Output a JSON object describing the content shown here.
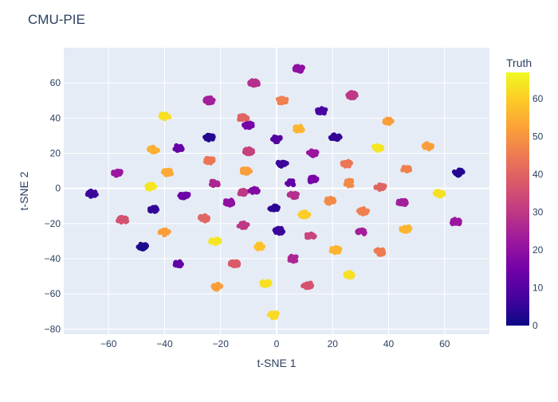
{
  "chart_data": {
    "type": "scatter",
    "title": "CMU-PIE",
    "xlabel": "t-SNE 1",
    "ylabel": "t-SNE 2",
    "xlim": [
      -76,
      76
    ],
    "ylim": [
      -83,
      80
    ],
    "x_ticks": [
      -60,
      -40,
      -20,
      0,
      20,
      40,
      60
    ],
    "y_ticks": [
      -80,
      -60,
      -40,
      -20,
      0,
      20,
      40,
      60
    ],
    "grid": true,
    "colorbar": {
      "title": "Truth",
      "colorscale": "plasma",
      "range": [
        0,
        67
      ],
      "ticks": [
        0,
        10,
        20,
        30,
        40,
        50,
        60
      ]
    },
    "clusters": [
      {
        "x": 8,
        "y": 68,
        "truth": 20,
        "n": 26
      },
      {
        "x": -8,
        "y": 60,
        "truth": 28,
        "n": 26
      },
      {
        "x": -24,
        "y": 50,
        "truth": 24,
        "n": 26
      },
      {
        "x": 2,
        "y": 50,
        "truth": 46,
        "n": 26
      },
      {
        "x": 27,
        "y": 53,
        "truth": 30,
        "n": 26
      },
      {
        "x": -40,
        "y": 41,
        "truth": 63,
        "n": 22
      },
      {
        "x": -12,
        "y": 40,
        "truth": 40,
        "n": 26
      },
      {
        "x": -10,
        "y": 36,
        "truth": 16,
        "n": 26
      },
      {
        "x": 16,
        "y": 44,
        "truth": 8,
        "n": 22
      },
      {
        "x": 40,
        "y": 38,
        "truth": 52,
        "n": 22
      },
      {
        "x": 8,
        "y": 34,
        "truth": 56,
        "n": 24
      },
      {
        "x": 0,
        "y": 28,
        "truth": 10,
        "n": 20
      },
      {
        "x": 21,
        "y": 29,
        "truth": 5,
        "n": 22
      },
      {
        "x": 13,
        "y": 20,
        "truth": 22,
        "n": 24
      },
      {
        "x": -24,
        "y": 29,
        "truth": 3,
        "n": 20
      },
      {
        "x": -44,
        "y": 22,
        "truth": 55,
        "n": 30
      },
      {
        "x": -35,
        "y": 23,
        "truth": 13,
        "n": 24
      },
      {
        "x": -10,
        "y": 21,
        "truth": 32,
        "n": 24
      },
      {
        "x": 36,
        "y": 23,
        "truth": 64,
        "n": 22
      },
      {
        "x": 54,
        "y": 24,
        "truth": 52,
        "n": 22
      },
      {
        "x": -24,
        "y": 16,
        "truth": 44,
        "n": 22
      },
      {
        "x": -11,
        "y": 10,
        "truth": 52,
        "n": 22
      },
      {
        "x": 2,
        "y": 14,
        "truth": 6,
        "n": 20
      },
      {
        "x": 25,
        "y": 14,
        "truth": 44,
        "n": 22
      },
      {
        "x": -57,
        "y": 9,
        "truth": 22,
        "n": 24
      },
      {
        "x": -39,
        "y": 9,
        "truth": 54,
        "n": 22
      },
      {
        "x": 46,
        "y": 11,
        "truth": 46,
        "n": 22
      },
      {
        "x": 65,
        "y": 9,
        "truth": 3,
        "n": 22
      },
      {
        "x": -22,
        "y": 3,
        "truth": 26,
        "n": 20
      },
      {
        "x": 5,
        "y": 3,
        "truth": 12,
        "n": 20
      },
      {
        "x": 13,
        "y": 5,
        "truth": 16,
        "n": 22
      },
      {
        "x": -45,
        "y": 1,
        "truth": 64,
        "n": 22
      },
      {
        "x": -12,
        "y": -2,
        "truth": 30,
        "n": 24
      },
      {
        "x": -8,
        "y": -1,
        "truth": 18,
        "n": 24
      },
      {
        "x": 26,
        "y": 3,
        "truth": 48,
        "n": 22
      },
      {
        "x": 37,
        "y": 1,
        "truth": 40,
        "n": 22
      },
      {
        "x": 58,
        "y": -3,
        "truth": 63,
        "n": 22
      },
      {
        "x": -66,
        "y": -3,
        "truth": 6,
        "n": 24
      },
      {
        "x": -33,
        "y": -4,
        "truth": 14,
        "n": 22
      },
      {
        "x": 6,
        "y": -4,
        "truth": 28,
        "n": 20
      },
      {
        "x": 19,
        "y": -7,
        "truth": 48,
        "n": 22
      },
      {
        "x": 45,
        "y": -8,
        "truth": 24,
        "n": 22
      },
      {
        "x": -17,
        "y": -8,
        "truth": 20,
        "n": 20
      },
      {
        "x": -44,
        "y": -12,
        "truth": 5,
        "n": 20
      },
      {
        "x": -1,
        "y": -11,
        "truth": 4,
        "n": 20
      },
      {
        "x": 31,
        "y": -13,
        "truth": 46,
        "n": 22
      },
      {
        "x": 10,
        "y": -15,
        "truth": 60,
        "n": 24
      },
      {
        "x": -55,
        "y": -18,
        "truth": 36,
        "n": 24
      },
      {
        "x": -26,
        "y": -17,
        "truth": 40,
        "n": 22
      },
      {
        "x": -12,
        "y": -21,
        "truth": 30,
        "n": 24
      },
      {
        "x": 64,
        "y": -19,
        "truth": 22,
        "n": 22
      },
      {
        "x": 46,
        "y": -23,
        "truth": 56,
        "n": 22
      },
      {
        "x": 1,
        "y": -24,
        "truth": 6,
        "n": 22
      },
      {
        "x": -40,
        "y": -25,
        "truth": 52,
        "n": 22
      },
      {
        "x": 12,
        "y": -27,
        "truth": 33,
        "n": 22
      },
      {
        "x": 30,
        "y": -25,
        "truth": 24,
        "n": 20
      },
      {
        "x": -22,
        "y": -30,
        "truth": 64,
        "n": 24
      },
      {
        "x": -48,
        "y": -33,
        "truth": 2,
        "n": 24
      },
      {
        "x": -6,
        "y": -33,
        "truth": 58,
        "n": 22
      },
      {
        "x": 21,
        "y": -35,
        "truth": 56,
        "n": 24
      },
      {
        "x": 37,
        "y": -36,
        "truth": 45,
        "n": 22
      },
      {
        "x": 6,
        "y": -40,
        "truth": 26,
        "n": 22
      },
      {
        "x": -35,
        "y": -43,
        "truth": 12,
        "n": 20
      },
      {
        "x": -15,
        "y": -43,
        "truth": 38,
        "n": 22
      },
      {
        "x": 26,
        "y": -49,
        "truth": 63,
        "n": 22
      },
      {
        "x": -21,
        "y": -56,
        "truth": 52,
        "n": 24
      },
      {
        "x": -4,
        "y": -54,
        "truth": 63,
        "n": 22
      },
      {
        "x": 11,
        "y": -55,
        "truth": 36,
        "n": 22
      },
      {
        "x": -1,
        "y": -72,
        "truth": 62,
        "n": 24
      }
    ]
  }
}
